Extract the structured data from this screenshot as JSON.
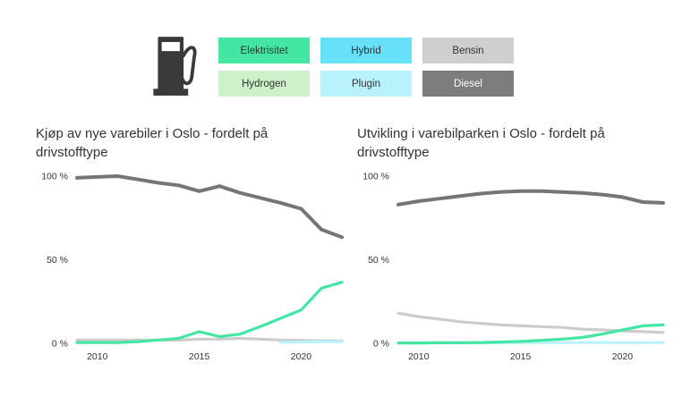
{
  "page": {
    "background": "#ffffff"
  },
  "legend": {
    "icon": "fuel-pump-icon",
    "icon_color": "#3a3a3a",
    "buttons": [
      {
        "id": "elektrisitet",
        "label": "Elektrisitet",
        "bg": "#43e7a3",
        "text_color": "#333333"
      },
      {
        "id": "hybrid",
        "label": "Hybrid",
        "bg": "#67e0f9",
        "text_color": "#333333"
      },
      {
        "id": "bensin",
        "label": "Bensin",
        "bg": "#cfcfcf",
        "text_color": "#333333"
      },
      {
        "id": "hydrogen",
        "label": "Hydrogen",
        "bg": "#cdf1c9",
        "text_color": "#333333"
      },
      {
        "id": "plugin",
        "label": "Plugin",
        "bg": "#b8f3fd",
        "text_color": "#333333"
      },
      {
        "id": "diesel",
        "label": "Diesel",
        "bg": "#7d7d7d",
        "text_color": "#ffffff"
      }
    ]
  },
  "chart_data": [
    {
      "type": "line",
      "title": "Kjøp av nye varebiler i Oslo - fordelt på drivstofftype",
      "x": [
        2009,
        2010,
        2011,
        2012,
        2013,
        2014,
        2015,
        2016,
        2017,
        2018,
        2019,
        2020,
        2021,
        2022
      ],
      "x_ticks": [
        {
          "value": 2010,
          "label": "2010"
        },
        {
          "value": 2015,
          "label": "2015"
        },
        {
          "value": 2020,
          "label": "2020"
        }
      ],
      "y_ticks": [
        {
          "value": 100,
          "label": "100 %"
        },
        {
          "value": 50,
          "label": "50 %"
        },
        {
          "value": 0,
          "label": "0 %"
        }
      ],
      "ylim": [
        0,
        100
      ],
      "grid": false,
      "legend_position": "top-shared",
      "series": [
        {
          "name": "Bensin",
          "color": "#cccccc",
          "values": [
            2,
            2,
            2,
            2,
            2,
            2,
            2.5,
            2.5,
            3,
            2.5,
            2,
            1.8,
            1.5,
            1.5
          ]
        },
        {
          "name": "Plugin",
          "color": "#b8f3fd",
          "values": [
            null,
            null,
            null,
            null,
            null,
            null,
            null,
            null,
            null,
            null,
            0.5,
            0.8,
            1,
            1
          ]
        },
        {
          "name": "Elektrisitet",
          "color": "#43e7a3",
          "values": [
            0.5,
            0.5,
            0.5,
            1,
            2,
            3,
            7,
            4,
            5.5,
            10,
            15,
            20,
            33,
            36.5
          ]
        },
        {
          "name": "Diesel",
          "color": "#757575",
          "values": [
            99,
            99.5,
            100,
            98,
            96,
            94.5,
            91,
            94,
            90,
            87,
            84,
            80.5,
            68,
            63.5
          ]
        }
      ]
    },
    {
      "type": "line",
      "title": "Utvikling i varebilparken i Oslo - fordelt på drivstofftype",
      "x": [
        2009,
        2010,
        2011,
        2012,
        2013,
        2014,
        2015,
        2016,
        2017,
        2018,
        2019,
        2020,
        2021,
        2022
      ],
      "x_ticks": [
        {
          "value": 2010,
          "label": "2010"
        },
        {
          "value": 2015,
          "label": "2015"
        },
        {
          "value": 2020,
          "label": "2020"
        }
      ],
      "y_ticks": [
        {
          "value": 100,
          "label": "100 %"
        },
        {
          "value": 50,
          "label": "50 %"
        },
        {
          "value": 0,
          "label": "0 %"
        }
      ],
      "ylim": [
        0,
        100
      ],
      "grid": false,
      "legend_position": "top-shared",
      "series": [
        {
          "name": "Bensin",
          "color": "#cccccc",
          "values": [
            18,
            16,
            14.5,
            13,
            12,
            11,
            10.5,
            10,
            9.5,
            8.5,
            8,
            7.5,
            7,
            6.5
          ]
        },
        {
          "name": "Plugin",
          "color": "#b8f3fd",
          "values": [
            0.3,
            0.3,
            0.3,
            0.3,
            0.3,
            0.3,
            0.4,
            0.4,
            0.5,
            0.5,
            0.5,
            0.5,
            0.5,
            0.5
          ]
        },
        {
          "name": "Elektrisitet",
          "color": "#43e7a3",
          "values": [
            0.2,
            0.2,
            0.3,
            0.4,
            0.5,
            0.8,
            1.2,
            1.8,
            2.5,
            3.5,
            5.5,
            8,
            10.5,
            11
          ]
        },
        {
          "name": "Diesel",
          "color": "#757575",
          "values": [
            83,
            85,
            86.5,
            88,
            89.5,
            90.5,
            91,
            91,
            90.5,
            90,
            89,
            87.5,
            84.5,
            84
          ]
        }
      ]
    }
  ]
}
